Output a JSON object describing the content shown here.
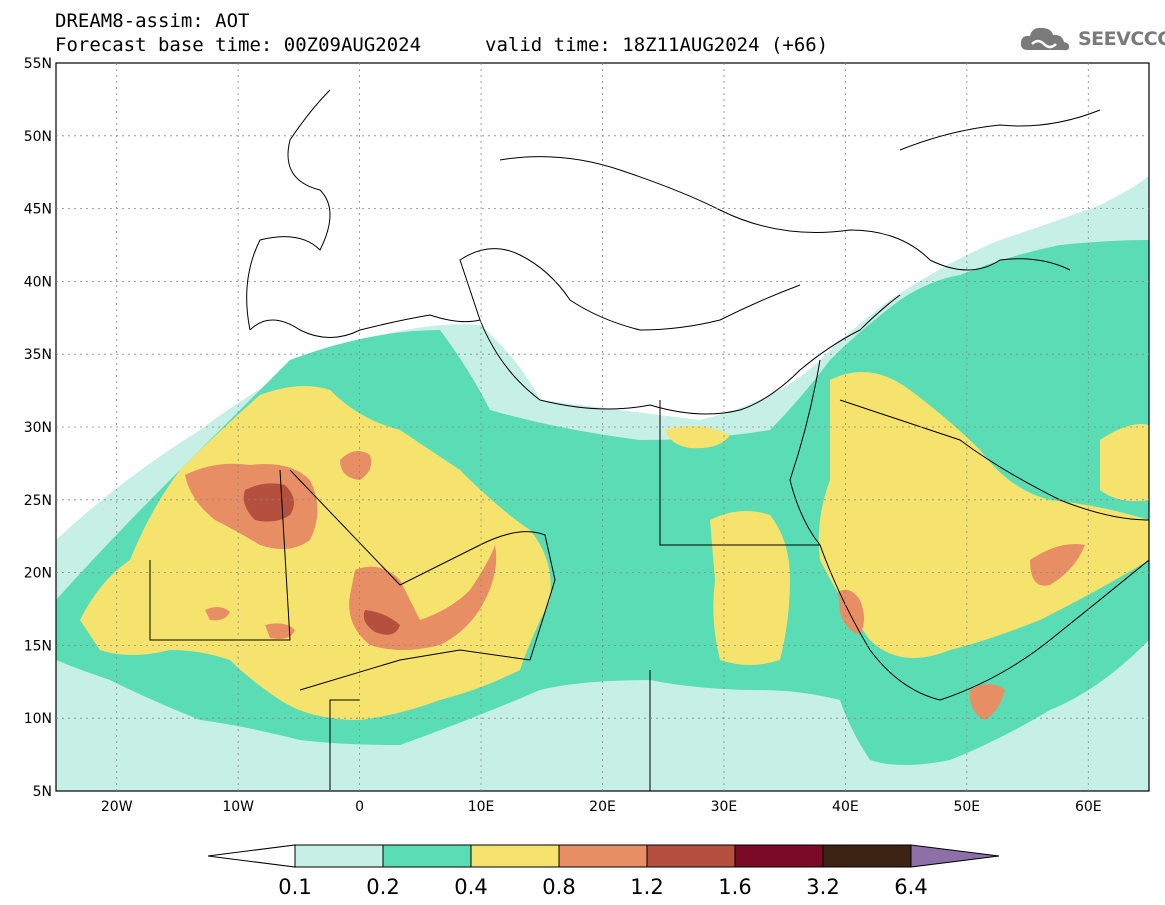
{
  "header": {
    "line1": "DREAM8-assim: AOT",
    "line2": "Forecast base time: 00Z09AUG2024",
    "line3": "valid time: 18Z11AUG2024 (+66)"
  },
  "logo": {
    "text": "SEEVCCC",
    "icon": "cloud-icon"
  },
  "map": {
    "lat_labels": [
      "55N",
      "50N",
      "45N",
      "40N",
      "35N",
      "30N",
      "25N",
      "20N",
      "15N",
      "10N",
      "5N"
    ],
    "lon_labels": [
      "20W",
      "10W",
      "0",
      "10E",
      "20E",
      "30E",
      "40E",
      "50E",
      "60E"
    ],
    "lat_range": [
      5,
      55
    ],
    "lon_range": [
      -25,
      65
    ]
  },
  "colorbar": {
    "labels": [
      "0.1",
      "0.2",
      "0.4",
      "0.8",
      "1.2",
      "1.6",
      "3.2",
      "6.4"
    ],
    "colors": [
      "#ffffff",
      "#c6efe6",
      "#5adcb4",
      "#f6e36e",
      "#e88e64",
      "#b5503e",
      "#7a0a25",
      "#3c2414",
      "#8e6fa8"
    ]
  },
  "palette": {
    "lightcyan": "#c6efe6",
    "green": "#5adcb4",
    "yellow": "#f6e36e",
    "orange": "#e88e64",
    "red": "#b5503e"
  }
}
